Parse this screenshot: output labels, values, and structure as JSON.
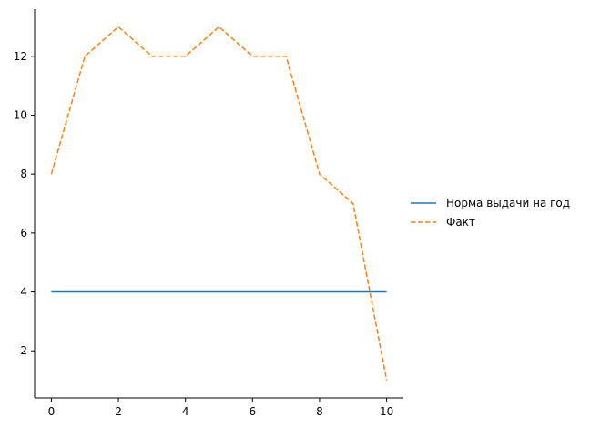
{
  "chart_data": {
    "type": "line",
    "x": [
      0,
      1,
      2,
      3,
      4,
      5,
      6,
      7,
      8,
      9,
      10
    ],
    "series": [
      {
        "name": "Норма выдачи на год",
        "values": [
          4,
          4,
          4,
          4,
          4,
          4,
          4,
          4,
          4,
          4,
          4
        ],
        "color": "#1f77b4",
        "style": "solid"
      },
      {
        "name": "Факт",
        "values": [
          8,
          12,
          13,
          12,
          12,
          13,
          12,
          12,
          8,
          7,
          1
        ],
        "color": "#ff7f0e",
        "style": "dashed"
      }
    ],
    "xticks": [
      "0",
      "2",
      "4",
      "6",
      "8",
      "10"
    ],
    "yticks": [
      "2",
      "4",
      "6",
      "8",
      "10",
      "12"
    ],
    "xlim": [
      -0.5,
      10.5
    ],
    "ylim": [
      0.4,
      13.6
    ],
    "grid": false,
    "legend_position": "right",
    "spines": "left-bottom"
  }
}
